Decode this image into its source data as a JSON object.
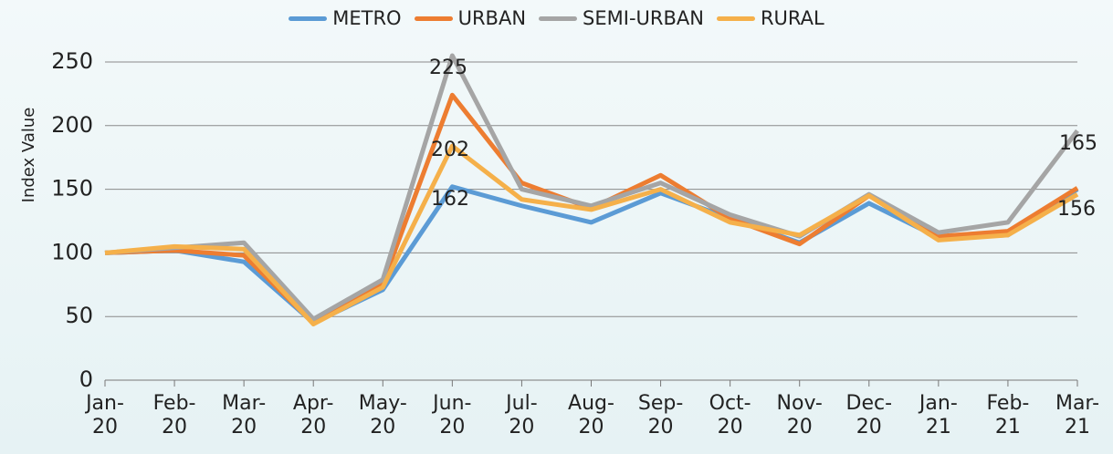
{
  "chart_data": {
    "type": "line",
    "y_label": "Index Value",
    "categories": [
      "Jan-20",
      "Feb-20",
      "Mar-20",
      "Apr-20",
      "May-20",
      "Jun-20",
      "Jul-20",
      "Aug-20",
      "Sep-20",
      "Oct-20",
      "Nov-20",
      "Dec-20",
      "Jan-21",
      "Feb-21",
      "Mar-21"
    ],
    "series": [
      {
        "name": "METRO",
        "color": "#5b9bd5",
        "values": [
          100,
          102,
          93,
          45,
          71,
          152,
          137,
          124,
          147,
          127,
          108,
          139,
          112,
          114,
          150
        ]
      },
      {
        "name": "URBAN",
        "color": "#ed7d31",
        "values": [
          100,
          102,
          98,
          45,
          76,
          224,
          155,
          135,
          161,
          127,
          107,
          145,
          113,
          117,
          151
        ]
      },
      {
        "name": "SEMI-URBAN",
        "color": "#a5a5a5",
        "values": [
          100,
          104,
          108,
          48,
          79,
          255,
          150,
          137,
          155,
          130,
          113,
          146,
          116,
          124,
          196
        ]
      },
      {
        "name": "RURAL",
        "color": "#f5b04a",
        "values": [
          100,
          105,
          103,
          44,
          73,
          184,
          142,
          134,
          150,
          124,
          114,
          145,
          110,
          114,
          146
        ]
      }
    ],
    "annotations": [
      "225",
      "202",
      "162",
      "165",
      "156"
    ],
    "ylim": [
      0,
      250
    ],
    "yticks": [
      0,
      50,
      100,
      150,
      200,
      250
    ],
    "grid": true
  }
}
